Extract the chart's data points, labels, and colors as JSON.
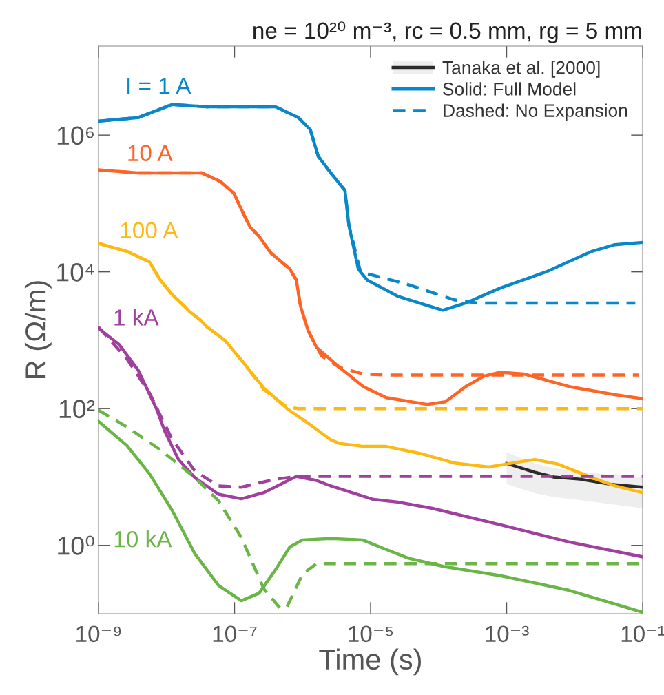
{
  "chart_data": {
    "type": "line",
    "title": "ne = 10²⁰ m⁻³, rc = 0.5 mm, rg = 5 mm",
    "xlabel": "Time (s)",
    "ylabel": "R (Ω/m)",
    "log": "xy",
    "xlim": [
      1e-09,
      0.1
    ],
    "ylim": [
      0.1,
      20000000.0
    ],
    "xticks": [
      {
        "value": 1e-09,
        "label": "10⁻⁹"
      },
      {
        "value": 1e-07,
        "label": "10⁻⁷"
      },
      {
        "value": 1e-05,
        "label": "10⁻⁵"
      },
      {
        "value": 0.001,
        "label": "10⁻³"
      },
      {
        "value": 0.1,
        "label": "10⁻¹"
      }
    ],
    "yticks": [
      {
        "value": 1,
        "label": "10⁰"
      },
      {
        "value": 100,
        "label": "10²"
      },
      {
        "value": 10000,
        "label": "10⁴"
      },
      {
        "value": 1000000,
        "label": "10⁶"
      }
    ],
    "grid": false,
    "legend": "top right",
    "series": [
      {
        "name": "Tanaka et al. [2000]",
        "color": "#2b2b2b",
        "line_style": "solid",
        "x": [
          0.001,
          0.0026,
          0.0049,
          0.012,
          0.034,
          0.1
        ],
        "values": [
          15.8,
          11.7,
          10,
          9.3,
          7.8,
          7.1
        ],
        "upper": [
          22.9,
          15.8,
          13.5,
          12,
          10.7,
          10
        ],
        "lower": [
          7.9,
          5.8,
          5.1,
          4.6,
          4.0,
          3.5
        ]
      },
      {
        "name": "Solid: Full Model",
        "color": "#0a87c8",
        "line_style": "solid",
        "x": [
          1e-09,
          3.8e-09,
          8.1e-09,
          1.2e-08,
          3.9e-08,
          4e-07,
          8.7e-07,
          1.3e-06,
          1.7e-06,
          2.6e-06,
          4.2e-06,
          4.8e-06,
          6.6e-06,
          8.9e-06,
          2.5e-05,
          0.000115,
          0.00025,
          0.00081,
          0.0038,
          0.018,
          0.039,
          0.1
        ],
        "values": [
          1600000.0,
          1800000.0,
          2400000.0,
          2800000.0,
          2600000.0,
          2600000.0,
          1800000.0,
          1200000.0,
          490000.0,
          280000.0,
          155000.0,
          48000.0,
          11000.0,
          7600,
          4400,
          2750,
          3500,
          5800,
          10000.0,
          20000.0,
          25000.0,
          27000.0
        ]
      },
      {
        "name": "Dashed: No Expansion",
        "color": "#0a87c8",
        "line_style": "dashed",
        "x": [
          1e-09,
          3.8e-09,
          8.1e-09,
          1.2e-08,
          3.9e-08,
          4e-07,
          8.7e-07,
          1.3e-06,
          1.7e-06,
          2.6e-06,
          4.2e-06,
          4.8e-06,
          7.1e-06,
          3.6e-05,
          0.00017,
          0.00037,
          0.078
        ],
        "values": [
          1600000.0,
          1800000.0,
          2400000.0,
          2800000.0,
          2600000.0,
          2600000.0,
          1800000.0,
          1200000.0,
          490000.0,
          280000.0,
          155000.0,
          48000.0,
          10000.0,
          6500,
          3900,
          3500,
          3500
        ]
      },
      {
        "color": "#fd6426",
        "line_style": "solid",
        "x": [
          1e-09,
          3.8e-09,
          3.3e-08,
          6.2e-08,
          9.8e-08,
          1.35e-07,
          1.7e-07,
          2.3e-07,
          3.4e-07,
          6.5e-07,
          8.1e-07,
          9.3e-07,
          1.2e-06,
          1.6e-06,
          3.5e-06,
          7.8e-06,
          1.7e-05,
          6.8e-05,
          0.000126,
          0.00025,
          0.00047,
          0.00081,
          0.0018,
          0.0083,
          0.039,
          0.1
        ],
        "values": [
          310000.0,
          280000.0,
          280000.0,
          210000.0,
          140000.0,
          71000.0,
          45000.0,
          33000.0,
          19000.0,
          11000.0,
          7600,
          3200,
          1400,
          790,
          400,
          210,
          145,
          115,
          126,
          210,
          300,
          340,
          320,
          210,
          160,
          140
        ]
      },
      {
        "color": "#fd6426",
        "line_style": "dashed",
        "x": [
          1e-09,
          3.8e-09,
          3.3e-08,
          6.2e-08,
          9.8e-08,
          1.35e-07,
          1.7e-07,
          2.3e-07,
          3.4e-07,
          6.5e-07,
          8.1e-07,
          9.3e-07,
          1.2e-06,
          1.9e-06,
          3.5e-06,
          7.8e-06,
          1.7e-05,
          0.087
        ],
        "values": [
          310000.0,
          280000.0,
          280000.0,
          210000.0,
          140000.0,
          71000.0,
          45000.0,
          33000.0,
          19000.0,
          11000.0,
          7600,
          3200,
          1400,
          590,
          400,
          320,
          310,
          310
        ]
      },
      {
        "color": "#fdb913",
        "line_style": "solid",
        "x": [
          1e-09,
          2.6e-09,
          5.6e-09,
          8.1e-09,
          1.2e-08,
          1.8e-08,
          2.2e-08,
          3.1e-08,
          3.9e-08,
          7.2e-08,
          1.35e-07,
          2.7e-07,
          5.9e-07,
          1.3e-06,
          2.6e-06,
          3.5e-06,
          7.8e-06,
          1.7e-05,
          5.4e-05,
          0.00017,
          0.00055,
          0.001,
          0.0026,
          0.0056,
          0.018,
          0.039,
          0.1
        ],
        "values": [
          26000.0,
          20000.0,
          14000.0,
          7600,
          4700,
          3200,
          2600,
          2000,
          1580,
          1000,
          470,
          200,
          100,
          58,
          35,
          31,
          28,
          28,
          22,
          16,
          14,
          15.5,
          18,
          15.5,
          9.8,
          7.4,
          5.9
        ]
      },
      {
        "color": "#fdb913",
        "line_style": "dashed",
        "x": [
          1e-09,
          2.6e-09,
          5.6e-09,
          8.1e-09,
          1.2e-08,
          1.8e-08,
          2.2e-08,
          3.1e-08,
          3.9e-08,
          7.2e-08,
          1.35e-07,
          2.7e-07,
          5.9e-07,
          8.7e-07,
          0.1
        ],
        "values": [
          26000.0,
          20000.0,
          14000.0,
          7600,
          4700,
          3200,
          2600,
          2000,
          1580,
          1000,
          470,
          190,
          105,
          100,
          100
        ]
      },
      {
        "color": "#a0409e",
        "line_style": "solid",
        "x": [
          1e-09,
          2e-09,
          3.8e-09,
          7.1e-09,
          9.5e-09,
          1.5e-08,
          2.6e-08,
          5.8e-08,
          1.26e-07,
          2.7e-07,
          8.1e-07,
          1.6e-06,
          2.6e-06,
          1.1e-05,
          2.5e-05,
          7.9e-05,
          0.00081,
          0.0083,
          0.1
        ],
        "values": [
          1500,
          870,
          370,
          100,
          46,
          18,
          9.8,
          5.6,
          4.8,
          5.9,
          10.2,
          8.9,
          7.4,
          4.7,
          4.3,
          3.5,
          2.0,
          1.12,
          0.68
        ]
      },
      {
        "color": "#a0409e",
        "line_style": "dashed",
        "x": [
          1e-09,
          2.6e-09,
          5.6e-09,
          1.2e-08,
          2.6e-08,
          5.8e-08,
          1.26e-07,
          4e-07,
          8.7e-07,
          0.1
        ],
        "values": [
          1550,
          540,
          170,
          36,
          12.3,
          7.4,
          7.1,
          9.3,
          10.2,
          10.2
        ]
      },
      {
        "color": "#6ab546",
        "line_style": "solid",
        "x": [
          1e-09,
          2.6e-09,
          5.6e-09,
          1.2e-08,
          2.6e-08,
          5.8e-08,
          1.26e-07,
          2.3e-07,
          4e-07,
          6.5e-07,
          1e-06,
          2.6e-06,
          7.6e-06,
          1.7e-05,
          3.6e-05,
          0.00012,
          0.00081,
          0.0083,
          0.1
        ],
        "values": [
          65,
          29,
          11.2,
          3.3,
          0.76,
          0.26,
          0.155,
          0.2,
          0.44,
          0.95,
          1.2,
          1.26,
          1.2,
          0.87,
          0.65,
          0.49,
          0.36,
          0.22,
          0.105
        ]
      },
      {
        "color": "#6ab546",
        "line_style": "dashed",
        "x": [
          1e-09,
          2.6e-09,
          8.1e-09,
          2.6e-08,
          5.8e-08,
          1.26e-07,
          2.7e-07,
          4.7e-07,
          5.9e-07,
          1e-06,
          1.6e-06,
          0.087
        ],
        "values": [
          95,
          54,
          25,
          9.8,
          4.5,
          1.3,
          0.23,
          0.12,
          0.126,
          0.38,
          0.54,
          0.54
        ]
      }
    ],
    "annotations": [
      {
        "text": "I = 1 A",
        "x": 8.1e-09,
        "y": 2400000.0
      },
      {
        "text": "10 A",
        "x": 3.8e-09,
        "y": 280000.0
      },
      {
        "text": "100 A",
        "x": 5.6e-09,
        "y": 14000.0
      },
      {
        "text": "1 kA",
        "x": 3.8e-09,
        "y": 370
      },
      {
        "text": "10 kA",
        "x": 5.6e-09,
        "y": 11.2
      }
    ]
  }
}
